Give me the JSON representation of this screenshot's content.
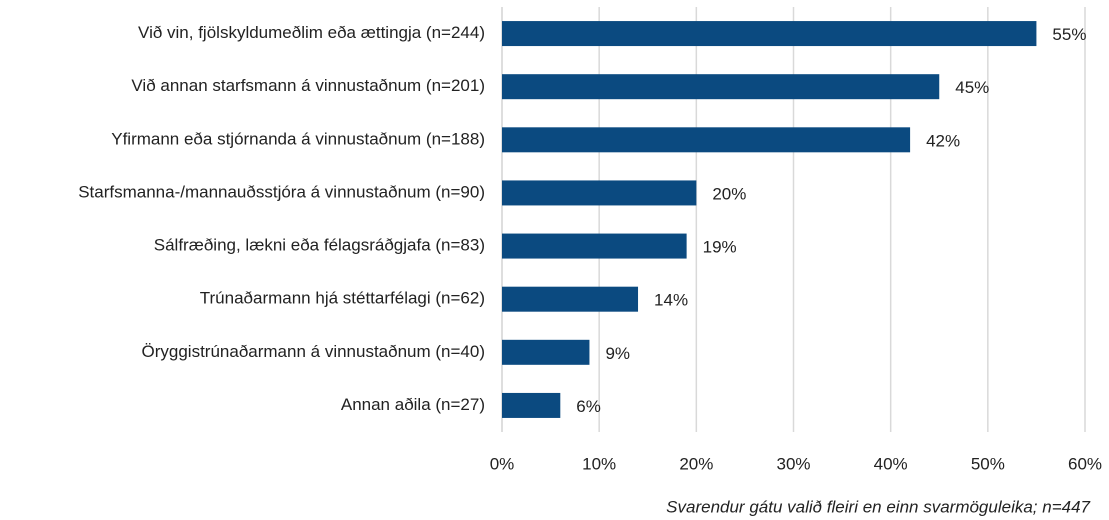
{
  "chart_data": {
    "type": "barh",
    "categories": [
      "Við vin, fjölskyldumeðlim eða ættingja (n=244)",
      "Við annan starfsmann á vinnustaðnum (n=201)",
      "Yfirmann eða stjórnanda á vinnustaðnum (n=188)",
      "Starfsmanna-/mannauðsstjóra á vinnustaðnum (n=90)",
      "Sálfræðing, lækni eða félagsráðgjafa (n=83)",
      "Trúnaðarmann hjá stéttarfélagi (n=62)",
      "Öryggistrúnaðarmann á vinnustaðnum (n=40)",
      "Annan aðila (n=27)"
    ],
    "values": [
      55,
      45,
      42,
      20,
      19,
      14,
      9,
      6
    ],
    "value_labels": [
      "55%",
      "45%",
      "42%",
      "20%",
      "19%",
      "14%",
      "9%",
      "6%"
    ],
    "color": "#0b4a80",
    "xlim": [
      0,
      60
    ],
    "xticks": [
      {
        "value": 0,
        "label": "0%"
      },
      {
        "value": 10,
        "label": "10%"
      },
      {
        "value": 20,
        "label": "20%"
      },
      {
        "value": 30,
        "label": "30%"
      },
      {
        "value": 40,
        "label": "40%"
      },
      {
        "value": 50,
        "label": "50%"
      },
      {
        "value": 60,
        "label": "60%"
      }
    ],
    "grid": true,
    "note": "Svarendur gátu valið fleiri en einn svarmöguleika;  n=447"
  }
}
